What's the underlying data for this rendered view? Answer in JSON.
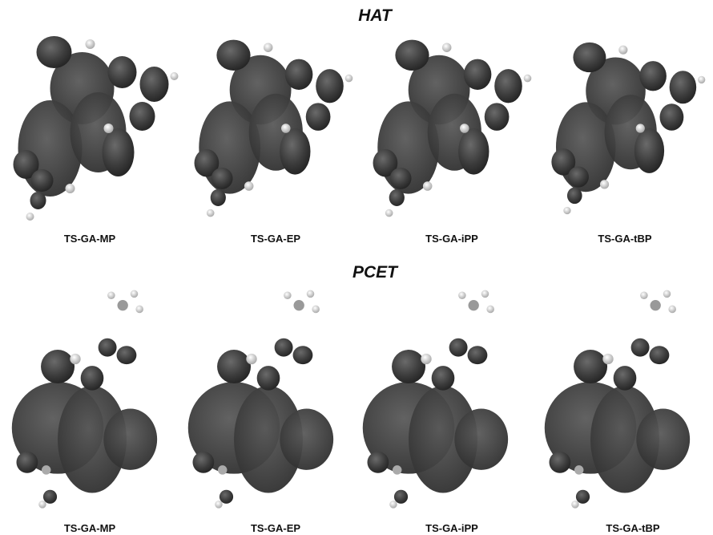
{
  "sections": [
    {
      "title": "HAT",
      "panels": [
        {
          "label": "TS-GA-MP"
        },
        {
          "label": "TS-GA-EP"
        },
        {
          "label": "TS-GA-iPP"
        },
        {
          "label": "TS-GA-tBP"
        }
      ]
    },
    {
      "title": "PCET",
      "panels": [
        {
          "label": "TS-GA-MP"
        },
        {
          "label": "TS-GA-EP"
        },
        {
          "label": "TS-GA-iPP"
        },
        {
          "label": "TS-GA-tBP"
        }
      ]
    }
  ]
}
